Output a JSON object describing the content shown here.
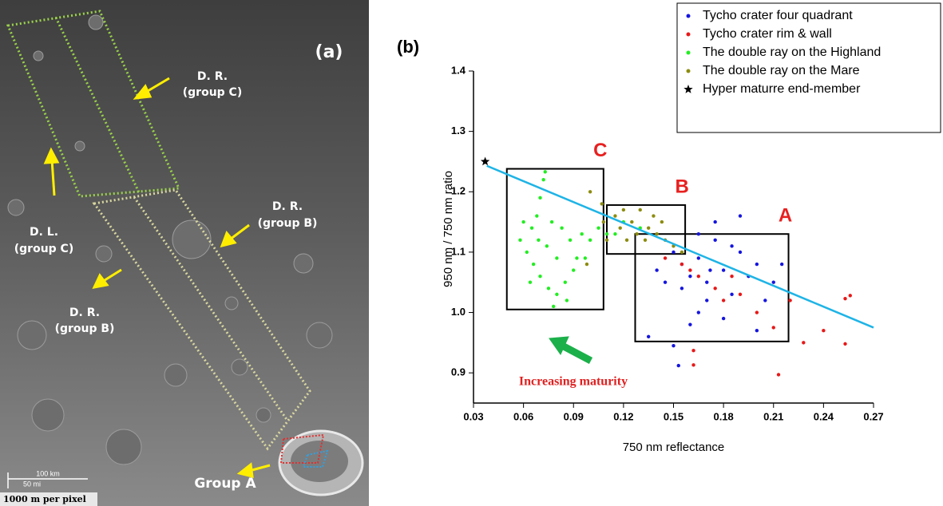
{
  "image_panel": {
    "panel_label": "(a)",
    "chart_panel_label": "(b)",
    "labels": [
      {
        "lines": [
          "D. R.",
          "(group C)"
        ]
      },
      {
        "lines": [
          "D. L.",
          "(group C)"
        ]
      },
      {
        "lines": [
          "D. R.",
          "(group B)"
        ]
      },
      {
        "lines": [
          "D. R.",
          "(group B)"
        ]
      },
      {
        "lines": [
          "Group A"
        ]
      }
    ],
    "scale_bar": [
      "100 km",
      "50 mi"
    ],
    "resolution": "1000 m per pixel"
  },
  "chart_data": {
    "type": "scatter",
    "xlabel": "750 nm reflectance",
    "ylabel": "950 nm / 750 nm ratio",
    "xlim": [
      0.03,
      0.27
    ],
    "ylim": [
      0.85,
      1.4
    ],
    "xticks": [
      0.03,
      0.06,
      0.09,
      0.12,
      0.15,
      0.18,
      0.21,
      0.24,
      0.27
    ],
    "yticks": [
      0.9,
      {
        "value": 1,
        "label": "1.0"
      },
      1.1,
      1.2,
      1.3,
      1.4
    ],
    "legend": "upper right",
    "series": [
      {
        "name": "Tycho crater four quadrant",
        "color": "#1515e0",
        "marker": "circle",
        "x": [
          0.15,
          0.155,
          0.16,
          0.165,
          0.17,
          0.175,
          0.18,
          0.185,
          0.19,
          0.195,
          0.2,
          0.21,
          0.215,
          0.17,
          0.165,
          0.16,
          0.18,
          0.19,
          0.175,
          0.145,
          0.14,
          0.15,
          0.153,
          0.2,
          0.205,
          0.165,
          0.185,
          0.135,
          0.155,
          0.172
        ],
        "values": [
          1.1,
          1.08,
          1.06,
          1.09,
          1.05,
          1.12,
          1.07,
          1.03,
          1.1,
          1.06,
          1.08,
          1.05,
          1.08,
          1.02,
          1.0,
          0.98,
          0.99,
          1.16,
          1.15,
          1.05,
          1.07,
          0.945,
          0.912,
          0.97,
          1.02,
          1.13,
          1.11,
          0.96,
          1.04,
          1.07
        ]
      },
      {
        "name": "Tycho crater rim & wall",
        "color": "#e81818",
        "marker": "circle",
        "x": [
          0.155,
          0.165,
          0.175,
          0.18,
          0.19,
          0.2,
          0.21,
          0.22,
          0.24,
          0.253,
          0.256,
          0.253,
          0.228,
          0.213,
          0.162,
          0.162,
          0.16,
          0.185,
          0.145
        ],
        "values": [
          1.08,
          1.06,
          1.04,
          1.02,
          1.03,
          1.0,
          0.975,
          1.02,
          0.97,
          1.023,
          1.028,
          0.948,
          0.95,
          0.897,
          0.937,
          0.913,
          1.07,
          1.06,
          1.09
        ]
      },
      {
        "name": "The double ray on the Highland",
        "color": "#22ee22",
        "marker": "circle",
        "x": [
          0.073,
          0.072,
          0.07,
          0.068,
          0.065,
          0.06,
          0.058,
          0.062,
          0.066,
          0.07,
          0.075,
          0.08,
          0.078,
          0.085,
          0.09,
          0.088,
          0.083,
          0.077,
          0.095,
          0.1,
          0.105,
          0.11,
          0.097,
          0.092,
          0.08,
          0.074,
          0.069,
          0.064,
          0.086,
          0.12,
          0.115,
          0.13
        ],
        "values": [
          1.233,
          1.22,
          1.19,
          1.16,
          1.14,
          1.15,
          1.12,
          1.1,
          1.08,
          1.06,
          1.04,
          1.03,
          1.01,
          1.05,
          1.07,
          1.12,
          1.14,
          1.15,
          1.13,
          1.12,
          1.14,
          1.13,
          1.09,
          1.09,
          1.09,
          1.11,
          1.12,
          1.05,
          1.02,
          1.15,
          1.13,
          1.14
        ]
      },
      {
        "name": "The double ray on the Mare",
        "color": "#8c8c10",
        "marker": "circle",
        "x": [
          0.1,
          0.107,
          0.115,
          0.12,
          0.125,
          0.13,
          0.135,
          0.14,
          0.145,
          0.15,
          0.128,
          0.118,
          0.11,
          0.155,
          0.138,
          0.122,
          0.108,
          0.098,
          0.143,
          0.133
        ],
        "values": [
          1.2,
          1.18,
          1.16,
          1.17,
          1.15,
          1.17,
          1.14,
          1.13,
          1.12,
          1.11,
          1.13,
          1.14,
          1.12,
          1.1,
          1.16,
          1.12,
          1.15,
          1.08,
          1.15,
          1.12
        ]
      },
      {
        "name": "Hyper maturre end-member",
        "color": "#000000",
        "marker": "star",
        "x": [
          0.037
        ],
        "values": [
          1.25
        ]
      }
    ],
    "trend_line": {
      "color": "#1eb4e6",
      "x": [
        0.038,
        0.27
      ],
      "values": [
        1.243,
        0.975
      ]
    },
    "regions": [
      {
        "label": "C",
        "x": [
          0.05,
          0.108
        ],
        "y": [
          1.005,
          1.238
        ]
      },
      {
        "label": "B",
        "x": [
          0.11,
          0.157
        ],
        "y": [
          1.097,
          1.178
        ]
      },
      {
        "label": "A",
        "x": [
          0.127,
          0.219
        ],
        "y": [
          0.952,
          1.13
        ]
      }
    ],
    "annotation": "Increasing maturity"
  }
}
